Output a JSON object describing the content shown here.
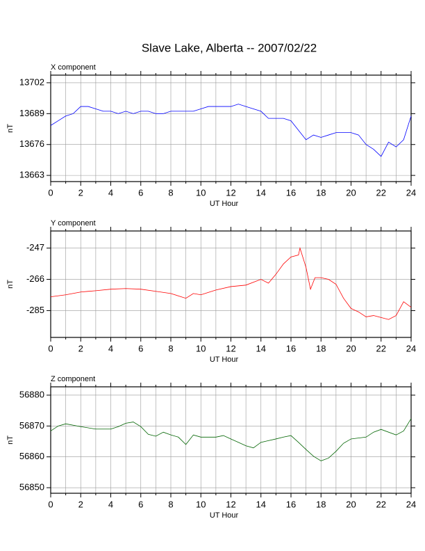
{
  "title": "Slave Lake, Alberta -- 2007/02/22",
  "chart_data": [
    {
      "type": "line",
      "title": "X component",
      "xlabel": "UT Hour",
      "ylabel": "nT",
      "x": [
        0,
        0.5,
        1,
        1.5,
        2,
        2.5,
        3,
        3.5,
        4,
        4.5,
        5,
        5.5,
        6,
        6.5,
        7,
        7.5,
        8,
        8.5,
        9,
        9.5,
        10,
        10.5,
        11,
        11.5,
        12,
        12.5,
        13,
        13.5,
        14,
        14.5,
        15,
        15.5,
        16,
        16.5,
        17,
        17.5,
        18,
        18.5,
        19,
        19.5,
        20,
        20.5,
        21,
        21.5,
        22,
        22.5,
        23,
        23.5,
        24
      ],
      "series": [
        {
          "color": "#0000ff",
          "values": [
            13684,
            13686,
            13688,
            13689,
            13692,
            13692,
            13691,
            13690,
            13690,
            13689,
            13690,
            13689,
            13690,
            13690,
            13689,
            13689,
            13690,
            13690,
            13690,
            13690,
            13691,
            13692,
            13692,
            13692,
            13692,
            13693,
            13692,
            13691,
            13690,
            13687,
            13687,
            13687,
            13686,
            13682,
            13678,
            13680,
            13679,
            13680,
            13681,
            13681,
            13681,
            13680,
            13676,
            13674,
            13671,
            13677,
            13675,
            13678,
            13688
          ]
        }
      ],
      "xlim": [
        0,
        24
      ],
      "xticks": [
        0,
        2,
        4,
        6,
        8,
        10,
        12,
        14,
        16,
        18,
        20,
        22,
        24
      ],
      "ylim": [
        13660.4,
        13705.2
      ],
      "yticks": [
        13663,
        13676,
        13689,
        13702
      ],
      "grid": true
    },
    {
      "type": "line",
      "title": "Y component",
      "xlabel": "UT Hour",
      "ylabel": "nT",
      "x": [
        0,
        1,
        2,
        3,
        4,
        5,
        6,
        7,
        8,
        9,
        9.5,
        10,
        11,
        12,
        13,
        14,
        14.5,
        15,
        15.5,
        16,
        16.5,
        16.6,
        17,
        17.3,
        17.6,
        18,
        18.5,
        19,
        19.5,
        20,
        20.5,
        21,
        21.5,
        22,
        22.5,
        23,
        23.5,
        24
      ],
      "series": [
        {
          "color": "#ff0000",
          "values": [
            -276.6,
            -275.4,
            -273.7,
            -272.9,
            -272,
            -271.6,
            -272,
            -273.3,
            -274.6,
            -277.5,
            -274.6,
            -275.4,
            -272.5,
            -270.4,
            -269.5,
            -266,
            -268.3,
            -262.9,
            -256.6,
            -252.4,
            -251.2,
            -247,
            -258.7,
            -272,
            -265,
            -265,
            -266,
            -269,
            -277.5,
            -283.7,
            -285.8,
            -288.8,
            -288,
            -289.2,
            -290.4,
            -288,
            -279.6,
            -283
          ]
        }
      ],
      "xlim": [
        0,
        24
      ],
      "xticks": [
        0,
        2,
        4,
        6,
        8,
        10,
        12,
        14,
        16,
        18,
        20,
        22,
        24
      ],
      "ylim": [
        -301.3,
        -236.6
      ],
      "yticks": [
        -285,
        -266,
        -247
      ],
      "grid": true
    },
    {
      "type": "line",
      "title": "Z component",
      "xlabel": "UT Hour",
      "ylabel": "nT",
      "x": [
        0,
        0.5,
        1,
        2,
        3,
        4,
        4.5,
        5,
        5.5,
        6,
        6.5,
        7,
        7.5,
        8,
        8.5,
        9,
        9.5,
        10,
        11,
        11.5,
        12,
        13,
        13.5,
        14,
        15,
        15.5,
        16,
        16.5,
        17,
        17.5,
        18,
        18.5,
        19,
        19.5,
        20,
        21,
        21.5,
        22,
        23,
        23.5,
        24
      ],
      "series": [
        {
          "color": "#006400",
          "values": [
            56868.4,
            56870,
            56870.7,
            56869.8,
            56869,
            56869,
            56869.8,
            56870.9,
            56871.3,
            56869.8,
            56867.3,
            56866.7,
            56868,
            56867.1,
            56866.4,
            56864,
            56867.1,
            56866.4,
            56866.4,
            56866.9,
            56865.8,
            56863.6,
            56862.9,
            56864.7,
            56865.8,
            56866.4,
            56866.9,
            56864.7,
            56862.4,
            56860.2,
            56858.7,
            56859.6,
            56861.8,
            56864.4,
            56865.8,
            56866.4,
            56868,
            56868.9,
            56867.1,
            56868.4,
            56872.4
          ]
        }
      ],
      "xlim": [
        0,
        24
      ],
      "xticks": [
        0,
        2,
        4,
        6,
        8,
        10,
        12,
        14,
        16,
        18,
        20,
        22,
        24
      ],
      "ylim": [
        56848.2,
        56882.7
      ],
      "yticks": [
        56850,
        56860,
        56870,
        56880
      ],
      "grid": true
    }
  ]
}
